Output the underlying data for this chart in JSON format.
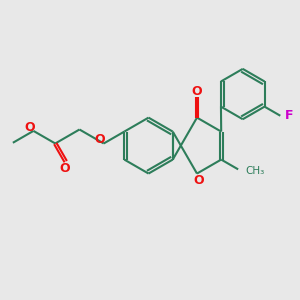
{
  "bg_color": "#e8e8e8",
  "bond_color": "#2d7d5a",
  "oxygen_color": "#ee1111",
  "fluorine_color": "#cc00cc",
  "lw": 1.5,
  "dbl_sep": 0.09,
  "fig_size": [
    3.0,
    3.0
  ],
  "dpi": 100,
  "xlim": [
    0,
    10
  ],
  "ylim": [
    0,
    10
  ]
}
